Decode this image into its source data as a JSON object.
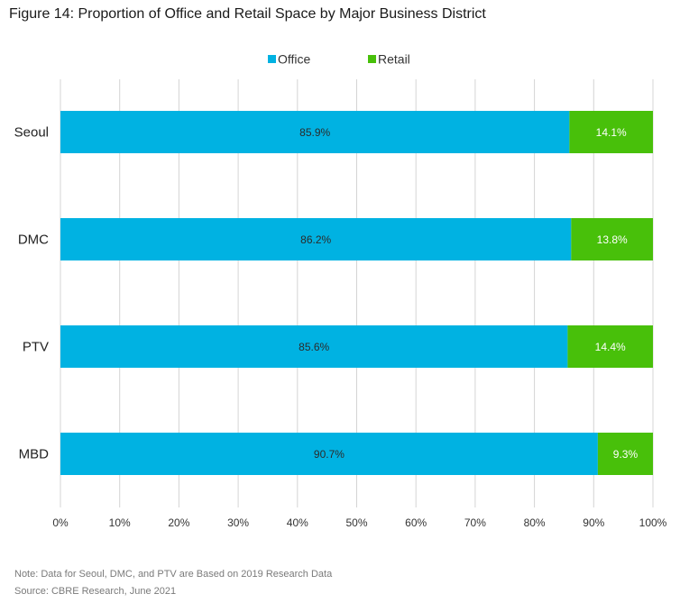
{
  "title": "Figure 14: Proportion of Office and Retail Space by Major Business District",
  "footer": {
    "note": "Note: Data for Seoul, DMC, and PTV are Based on 2019 Research Data",
    "source": "Source: CBRE Research, June 2021"
  },
  "colors": {
    "office": "#00b2e2",
    "retail": "#48c00a",
    "grid": "#d4d4d4"
  },
  "chart_data": {
    "type": "bar",
    "orientation": "horizontal",
    "stacked": true,
    "categories": [
      "Seoul",
      "DMC",
      "PTV",
      "MBD"
    ],
    "series": [
      {
        "name": "Office",
        "values": [
          85.9,
          86.2,
          85.6,
          90.7
        ],
        "labels": [
          "85.9%",
          "86.2%",
          "85.6%",
          "90.7%"
        ]
      },
      {
        "name": "Retail",
        "values": [
          14.1,
          13.8,
          14.4,
          9.3
        ],
        "labels": [
          "14.1%",
          "13.8%",
          "14.4%",
          "9.3%"
        ]
      }
    ],
    "xlim": [
      0,
      100
    ],
    "xticks": [
      0,
      10,
      20,
      30,
      40,
      50,
      60,
      70,
      80,
      90,
      100
    ],
    "xtick_labels": [
      "0%",
      "10%",
      "20%",
      "30%",
      "40%",
      "50%",
      "60%",
      "70%",
      "80%",
      "90%",
      "100%"
    ],
    "grid": "vertical",
    "legend": "top-center"
  }
}
